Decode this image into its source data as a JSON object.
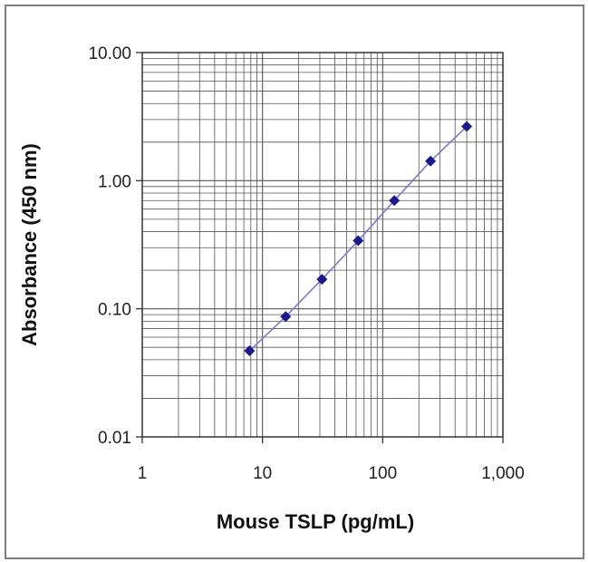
{
  "chart_data": {
    "type": "scatter",
    "title": "",
    "xlabel": "Mouse TSLP (pg/mL)",
    "ylabel": "Absorbance (450 nm)",
    "xscale": "log",
    "yscale": "log",
    "xlim": [
      1,
      1000
    ],
    "ylim": [
      0.01,
      10
    ],
    "grid": true,
    "legend": "none",
    "x_tick_labels": [
      "1",
      "10",
      "100",
      "1,000"
    ],
    "y_tick_labels": [
      "0.01",
      "0.10",
      "1.00",
      "10.00"
    ],
    "series": [
      {
        "color": "#1a1a8c",
        "line_color": "#7b7bc7",
        "points": [
          {
            "x": 7.8,
            "y": 0.047
          },
          {
            "x": 15.6,
            "y": 0.087
          },
          {
            "x": 31.25,
            "y": 0.17
          },
          {
            "x": 62.5,
            "y": 0.34
          },
          {
            "x": 125,
            "y": 0.7
          },
          {
            "x": 250,
            "y": 1.42
          },
          {
            "x": 500,
            "y": 2.65
          }
        ]
      }
    ],
    "colors": {
      "grid": "#555555",
      "axis": "#333333",
      "frame": "#7f7f7f"
    }
  }
}
